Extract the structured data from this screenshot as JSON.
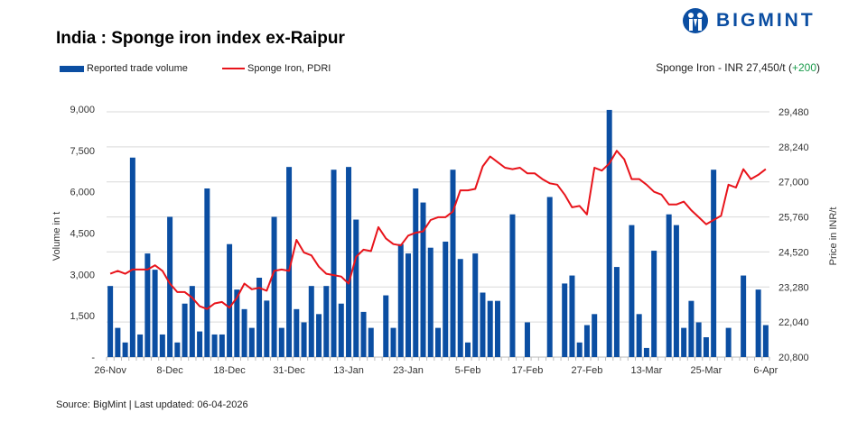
{
  "brand": {
    "name": "BIGMINT",
    "color": "#0b4ea2"
  },
  "header": {
    "title": "India : Sponge iron index ex-Raipur"
  },
  "price_note": {
    "prefix": "Sponge Iron - INR 27,450/t (",
    "change": "+200",
    "suffix": ")",
    "change_color": "#1a9b4b"
  },
  "source": "Source: BigMint | Last updated: 06-04-2026",
  "chart_data": {
    "type": "bar+line",
    "title": "India : Sponge iron index ex-Raipur",
    "legend_position": "top-left",
    "grid": true,
    "x_tick_labels": [
      "26-Nov",
      "8-Dec",
      "18-Dec",
      "31-Dec",
      "13-Jan",
      "23-Jan",
      "5-Feb",
      "17-Feb",
      "27-Feb",
      "13-Mar",
      "25-Mar",
      "6-Apr"
    ],
    "left_axis": {
      "label": "Volume in t",
      "ylim": [
        0,
        9000
      ],
      "ticks": [
        "-",
        "1,500",
        "3,000",
        "4,500",
        "6,000",
        "7,500",
        "9,000"
      ]
    },
    "right_axis": {
      "label": "Price in INR/t",
      "ylim": [
        20800,
        29480
      ],
      "ticks": [
        "20,800",
        "22,040",
        "23,280",
        "24,520",
        "25,760",
        "27,000",
        "28,240",
        "29,480"
      ]
    },
    "series": [
      {
        "name": "Reported trade volume",
        "type": "bar",
        "axis": "left",
        "color": "#0b4ea2",
        "values": [
          2580,
          1060,
          530,
          7240,
          820,
          3760,
          3170,
          820,
          5090,
          530,
          1940,
          2580,
          930,
          6120,
          820,
          820,
          4100,
          2450,
          1740,
          1060,
          2880,
          2050,
          5090,
          1060,
          6900,
          1740,
          1260,
          2580,
          1560,
          2580,
          6800,
          1940,
          6900,
          4990,
          1640,
          1060,
          null,
          2240,
          1060,
          4100,
          3760,
          6120,
          5610,
          3970,
          1060,
          4190,
          6800,
          3560,
          530,
          3760,
          2340,
          2040,
          2040,
          null,
          5180,
          null,
          1260,
          null,
          null,
          5810,
          null,
          2670,
          2960,
          530,
          1160,
          1560,
          null,
          8970,
          3270,
          null,
          4790,
          1560,
          330,
          3860,
          null,
          5180,
          4790,
          1060,
          2040,
          1260,
          720,
          6800,
          null,
          1060,
          null,
          2960,
          null,
          2450,
          1160
        ]
      },
      {
        "name": "Sponge Iron, PDRI",
        "type": "line",
        "axis": "right",
        "color": "#e8141b",
        "values": [
          23750,
          23850,
          23750,
          23900,
          23900,
          23900,
          24050,
          23850,
          23400,
          23100,
          23100,
          22900,
          22600,
          22500,
          22700,
          22750,
          22550,
          22900,
          23400,
          23200,
          23250,
          23150,
          23850,
          23900,
          23850,
          24950,
          24500,
          24400,
          24000,
          23750,
          23700,
          23650,
          23400,
          24350,
          24600,
          24550,
          25400,
          25000,
          24800,
          24750,
          25100,
          25200,
          25250,
          25650,
          25750,
          25750,
          25950,
          26700,
          26700,
          26750,
          27550,
          27900,
          27700,
          27500,
          27450,
          27500,
          27300,
          27300,
          27100,
          26950,
          26900,
          26550,
          26100,
          26150,
          25850,
          27500,
          27400,
          27650,
          28100,
          27800,
          27100,
          27100,
          26900,
          26650,
          26550,
          26200,
          26200,
          26300,
          26000,
          25750,
          25500,
          25650,
          25800,
          26900,
          26800,
          27450,
          27100,
          27250,
          27450
        ]
      }
    ]
  }
}
